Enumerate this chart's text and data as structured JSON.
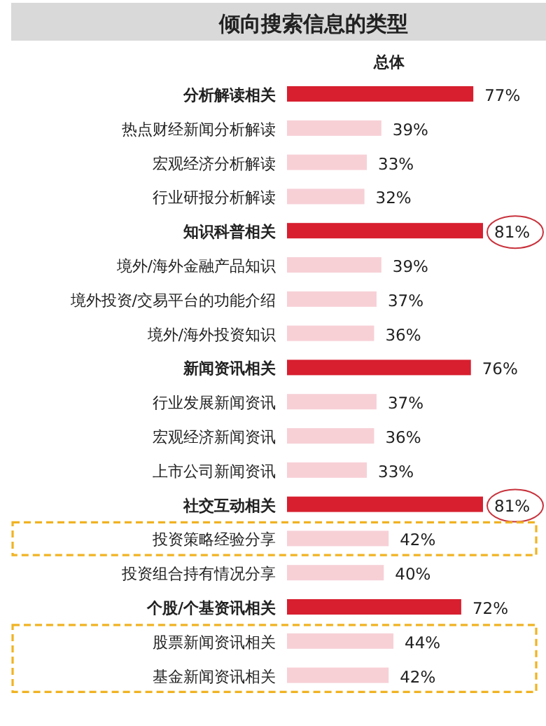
{
  "chart_data": {
    "type": "bar",
    "orientation": "horizontal",
    "title": "倾向搜索信息的类型",
    "subtitle": "总体",
    "value_labels": [
      "77%",
      "39%",
      "33%",
      "32%",
      "81%",
      "39%",
      "37%",
      "36%",
      "76%",
      "37%",
      "36%",
      "33%",
      "81%",
      "42%",
      "40%",
      "72%",
      "44%",
      "42%"
    ],
    "categories": [
      "分析解读相关",
      "热点财经新闻分析解读",
      "宏观经济分析解读",
      "行业研报分析解读",
      "知识科普相关",
      "境外/海外金融产品知识",
      "境外投资/交易平台的功能介绍",
      "境外/海外投资知识",
      "新闻资讯相关",
      "行业发展新闻资讯",
      "宏观经济新闻资讯",
      "上市公司新闻资讯",
      "社交互动相关",
      "投资策略经验分享",
      "投资组合持有情况分享",
      "个股/个基资讯相关",
      "股票新闻资讯相关",
      "基金新闻资讯相关"
    ],
    "values": [
      77,
      39,
      33,
      32,
      81,
      39,
      37,
      36,
      76,
      37,
      36,
      33,
      81,
      42,
      40,
      72,
      44,
      42
    ],
    "colors": [
      "#d71f2f",
      "#f7d0d6",
      "#f7d0d6",
      "#f7d0d6",
      "#d71f2f",
      "#f7d0d6",
      "#f7d0d6",
      "#f7d0d6",
      "#d71f2f",
      "#f7d0d6",
      "#f7d0d6",
      "#f7d0d6",
      "#d71f2f",
      "#f7d0d6",
      "#f7d0d6",
      "#d71f2f",
      "#f7d0d6",
      "#f7d0d6"
    ]
  }
}
